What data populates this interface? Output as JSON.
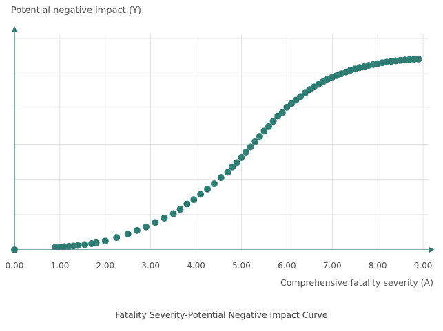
{
  "chart_data": {
    "type": "scatter",
    "title": "",
    "caption": "Fatality Severity-Potential Negative Impact Curve",
    "xlabel": "Comprehensive fatality severity (A)",
    "ylabel": "Potential negative impact (Y)",
    "xlim": [
      0,
      9
    ],
    "ylim": [
      0,
      1.2
    ],
    "xticks": [
      "0.00",
      "1.00",
      "2.00",
      "3.00",
      "4.00",
      "5.00",
      "6.00",
      "7.00",
      "8.00",
      "9.00"
    ],
    "y_gridlines": [
      0.2,
      0.4,
      0.6,
      0.8,
      1.0,
      1.2
    ],
    "grid": true,
    "legend": "none",
    "series": [
      {
        "color": "#2e7d72",
        "x": [
          0.0,
          0.9,
          1.0,
          1.1,
          1.2,
          1.3,
          1.4,
          1.55,
          1.7,
          1.8,
          2.0,
          2.25,
          2.5,
          2.7,
          2.9,
          3.1,
          3.3,
          3.5,
          3.65,
          3.8,
          3.95,
          4.1,
          4.25,
          4.4,
          4.55,
          4.7,
          4.8,
          4.9,
          5.0,
          5.1,
          5.2,
          5.3,
          5.4,
          5.5,
          5.6,
          5.7,
          5.8,
          5.9,
          6.0,
          6.1,
          6.2,
          6.3,
          6.4,
          6.5,
          6.6,
          6.7,
          6.8,
          6.9,
          7.0,
          7.1,
          7.2,
          7.3,
          7.4,
          7.5,
          7.6,
          7.7,
          7.8,
          7.9,
          8.0,
          8.1,
          8.2,
          8.3,
          8.4,
          8.5,
          8.6,
          8.7,
          8.8,
          8.9
        ],
        "y": [
          0.0,
          0.015,
          0.015,
          0.018,
          0.02,
          0.022,
          0.025,
          0.03,
          0.035,
          0.04,
          0.05,
          0.07,
          0.09,
          0.11,
          0.13,
          0.155,
          0.18,
          0.205,
          0.23,
          0.26,
          0.285,
          0.315,
          0.345,
          0.375,
          0.41,
          0.44,
          0.47,
          0.495,
          0.525,
          0.555,
          0.585,
          0.615,
          0.645,
          0.675,
          0.7,
          0.73,
          0.76,
          0.78,
          0.81,
          0.83,
          0.85,
          0.87,
          0.89,
          0.91,
          0.925,
          0.94,
          0.955,
          0.97,
          0.98,
          0.99,
          1.0,
          1.01,
          1.02,
          1.027,
          1.035,
          1.04,
          1.047,
          1.052,
          1.057,
          1.062,
          1.066,
          1.07,
          1.073,
          1.076,
          1.078,
          1.08,
          1.082,
          1.083
        ]
      }
    ]
  }
}
